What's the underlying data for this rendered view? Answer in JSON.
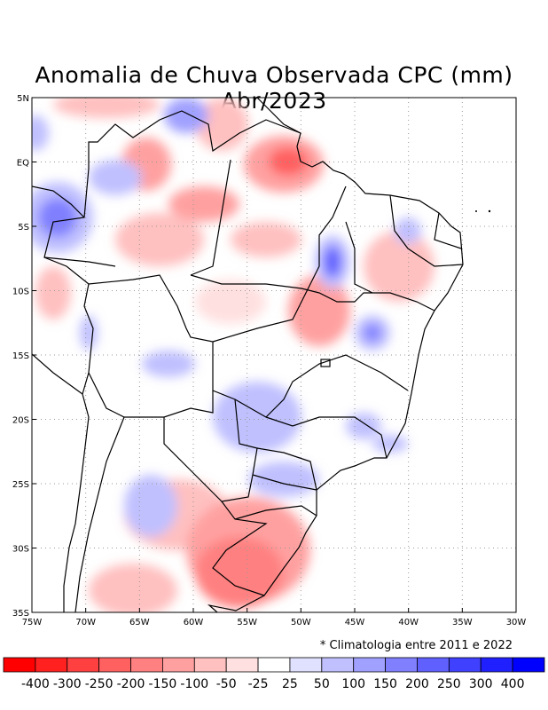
{
  "title": "Anomalia de Chuva Observada CPC (mm) Abr/2023",
  "map": {
    "lon_range": [
      -75,
      -30
    ],
    "lat_range": [
      -35,
      5
    ],
    "x_ticks": [
      "75W",
      "70W",
      "65W",
      "60W",
      "55W",
      "50W",
      "45W",
      "40W",
      "35W",
      "30W"
    ],
    "y_ticks": [
      "5N",
      "EQ",
      "5S",
      "10S",
      "15S",
      "20S",
      "25S",
      "30S",
      "35S"
    ]
  },
  "note": "* Climatologia entre 2011 e 2022",
  "colorbar": {
    "colors": [
      "#ff0000",
      "#ff2020",
      "#ff4040",
      "#ff6060",
      "#ff8080",
      "#ffa0a0",
      "#ffc0c0",
      "#ffe0e0",
      "#ffffff",
      "#e0e0ff",
      "#c0c0ff",
      "#a0a0ff",
      "#8080ff",
      "#6060ff",
      "#4040ff",
      "#2020ff",
      "#0000ff"
    ],
    "labels": [
      "-400",
      "-300",
      "-250",
      "-200",
      "-150",
      "-100",
      "-50",
      "-25",
      "25",
      "50",
      "100",
      "150",
      "200",
      "250",
      "300",
      "400"
    ]
  }
}
